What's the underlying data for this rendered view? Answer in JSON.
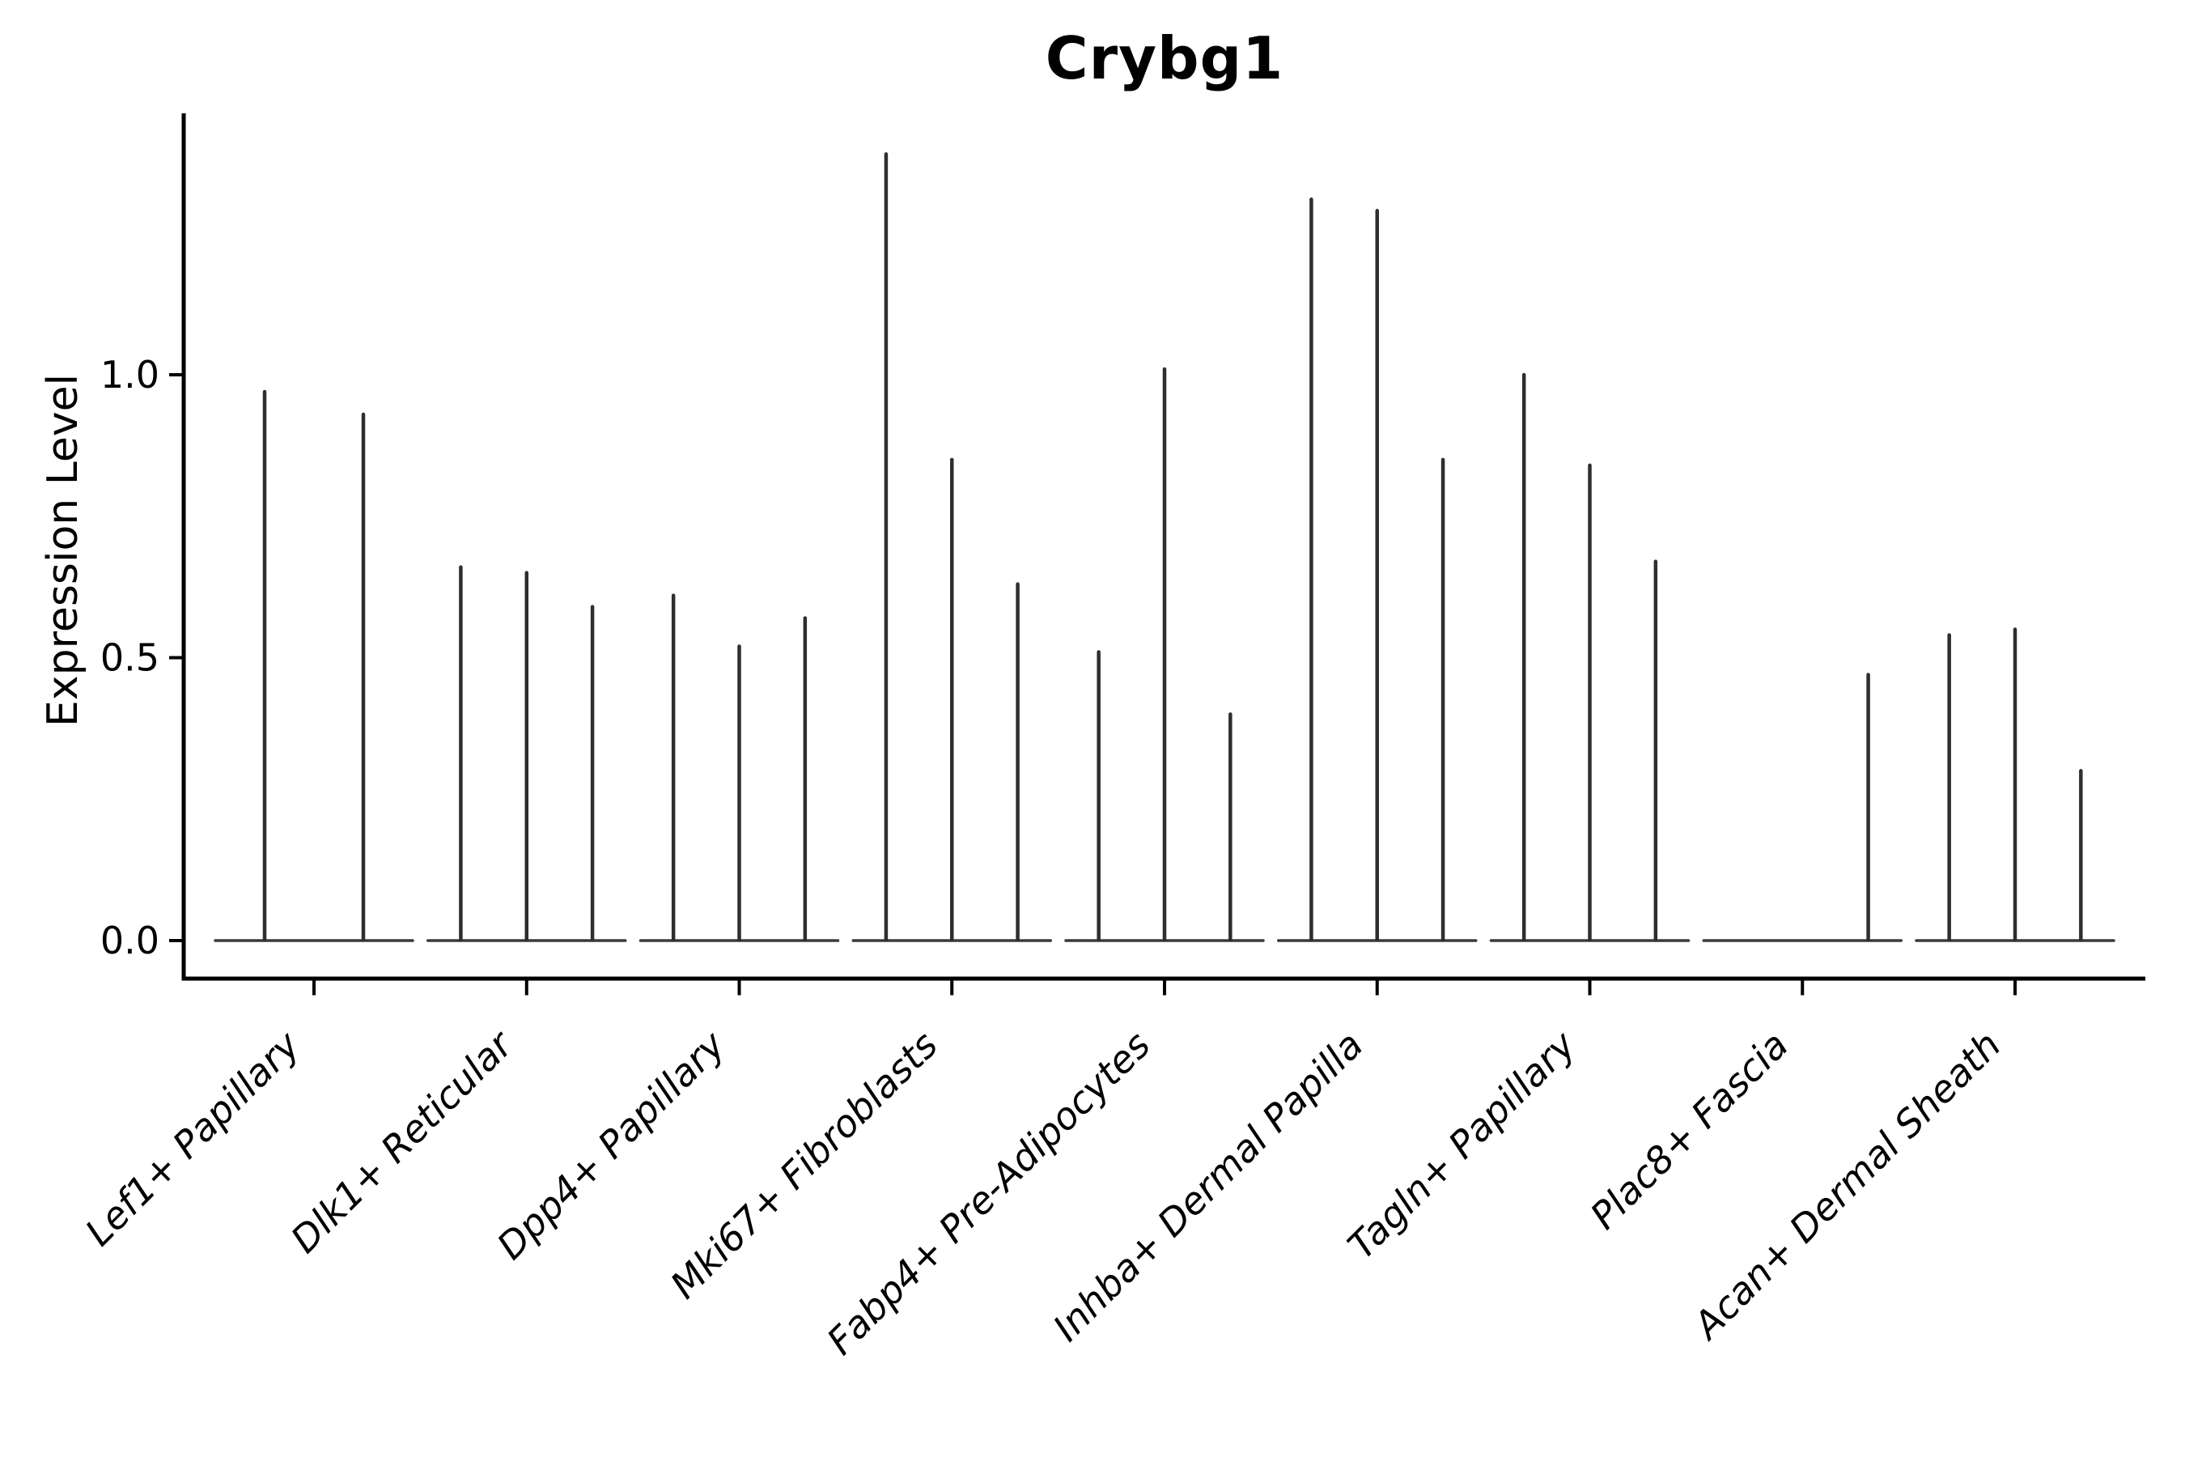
{
  "figure": {
    "title": "Crybg1",
    "background_color": "#ffffff"
  },
  "chart_data": {
    "type": "violin",
    "title": "Crybg1",
    "xlabel": "",
    "ylabel": "Expression Level",
    "ytick_labels": [
      "0.0",
      "0.5",
      "1.0"
    ],
    "ytick_values": [
      0.0,
      0.5,
      1.0
    ],
    "ylim": [
      -0.07,
      1.46
    ],
    "grid": false,
    "legend_position": "none",
    "note": "Collapsed (near-zero-width) violin plot: each category shows a flat base line at 0 with thin vertical spikes reaching each violin's maximum expression value",
    "categories": [
      "Lef1+ Papillary",
      "Dlk1+ Reticular",
      "Dpp4+ Papillary",
      "Mki67+ Fibroblasts",
      "Fabp4+ Pre-Adipocytes",
      "Inhba+ Dermal Papilla",
      "Tagln+ Papillary",
      "Plac8+ Fascia",
      "Acan+ Dermal Sheath"
    ],
    "groups": [
      {
        "category": "Lef1+ Papillary",
        "violin_max": [
          0.97,
          0.93
        ]
      },
      {
        "category": "Dlk1+ Reticular",
        "violin_max": [
          0.66,
          0.65,
          0.59
        ]
      },
      {
        "category": "Dpp4+ Papillary",
        "violin_max": [
          0.61,
          0.52,
          0.57
        ]
      },
      {
        "category": "Mki67+ Fibroblasts",
        "violin_max": [
          1.39,
          0.85,
          0.63
        ]
      },
      {
        "category": "Fabp4+ Pre-Adipocytes",
        "violin_max": [
          0.51,
          1.01,
          0.4
        ]
      },
      {
        "category": "Inhba+ Dermal Papilla",
        "violin_max": [
          1.31,
          1.29,
          0.85
        ]
      },
      {
        "category": "Tagln+ Papillary",
        "violin_max": [
          1.0,
          0.84,
          0.67
        ]
      },
      {
        "category": "Plac8+ Fascia",
        "violin_max": [
          0.0,
          0.0,
          0.47
        ]
      },
      {
        "category": "Acan+ Dermal Sheath",
        "violin_max": [
          0.54,
          0.55,
          0.3
        ]
      }
    ],
    "colors": {
      "spike": "#2e2e2e",
      "baseline": "#3a3a3a",
      "spine": "#000000",
      "text": "#000000"
    }
  }
}
